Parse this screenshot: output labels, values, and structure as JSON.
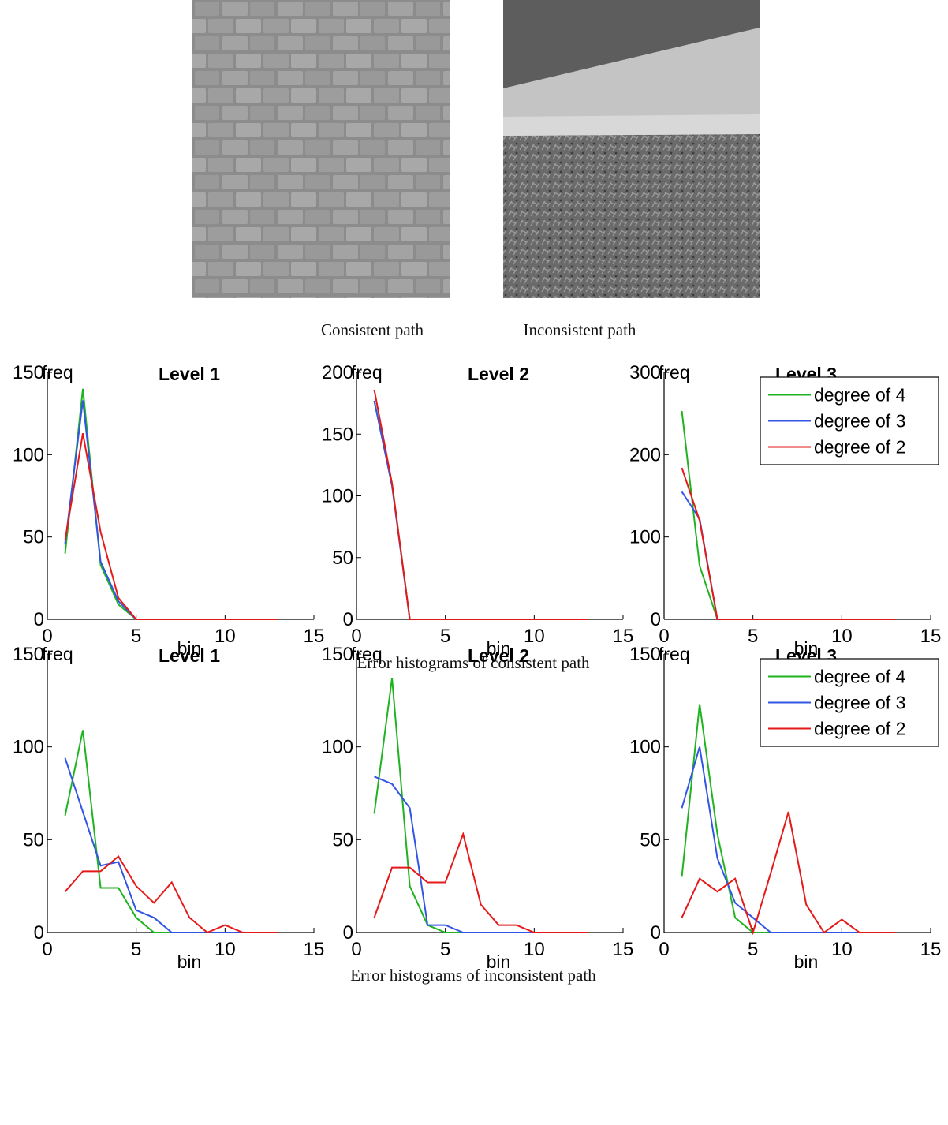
{
  "captions": [
    "Consistent path",
    "Inconsistent path",
    "Error histograms of consistent path",
    "Error histograms of inconsistent path"
  ],
  "chart_data": [
    {
      "type": "line",
      "title": "Level 1",
      "xlabel": "bin",
      "ylabel": "freq",
      "x": [
        1,
        2,
        3,
        4,
        5,
        6,
        7,
        8,
        9,
        10,
        11,
        12,
        13
      ],
      "xlim": [
        0,
        15
      ],
      "xticks": [
        0,
        5,
        10,
        15
      ],
      "ylim": [
        0,
        150
      ],
      "yticks": [
        0,
        50,
        100,
        150
      ],
      "series": [
        {
          "color": "#1fb31f",
          "values": [
            40,
            140,
            33,
            9,
            0,
            0,
            0,
            0,
            0,
            0,
            0,
            0,
            0
          ]
        },
        {
          "color": "#3355e6",
          "values": [
            46,
            133,
            35,
            11,
            0,
            0,
            0,
            0,
            0,
            0,
            0,
            0,
            0
          ]
        },
        {
          "color": "#e61919",
          "values": [
            48,
            113,
            53,
            13,
            0,
            0,
            0,
            0,
            0,
            0,
            0,
            0,
            0
          ]
        }
      ]
    },
    {
      "type": "line",
      "title": "Level 2",
      "xlabel": "bin",
      "ylabel": "freq",
      "x": [
        1,
        2,
        3,
        4,
        5,
        6,
        7,
        8,
        9,
        10,
        11,
        12,
        13
      ],
      "xlim": [
        0,
        15
      ],
      "xticks": [
        0,
        5,
        10,
        15
      ],
      "ylim": [
        0,
        200
      ],
      "yticks": [
        0,
        50,
        100,
        150,
        200
      ],
      "series": [
        {
          "color": "#1fb31f",
          "values": [
            177,
            110,
            0,
            0,
            0,
            0,
            0,
            0,
            0,
            0,
            0,
            0,
            0
          ]
        },
        {
          "color": "#3355e6",
          "values": [
            177,
            108,
            0,
            0,
            0,
            0,
            0,
            0,
            0,
            0,
            0,
            0,
            0
          ]
        },
        {
          "color": "#e61919",
          "values": [
            186,
            110,
            0,
            0,
            0,
            0,
            0,
            0,
            0,
            0,
            0,
            0,
            0
          ]
        }
      ]
    },
    {
      "type": "line",
      "title": "Level 3",
      "xlabel": "bin",
      "ylabel": "freq",
      "legend": "upper right",
      "x": [
        1,
        2,
        3,
        4,
        5,
        6,
        7,
        8,
        9,
        10,
        11,
        12,
        13
      ],
      "xlim": [
        0,
        15
      ],
      "xticks": [
        0,
        5,
        10,
        15
      ],
      "ylim": [
        0,
        300
      ],
      "yticks": [
        0,
        100,
        200,
        300
      ],
      "series": [
        {
          "name": "degree of 4",
          "color": "#1fb31f",
          "values": [
            253,
            65,
            0,
            0,
            0,
            0,
            0,
            0,
            0,
            0,
            0,
            0,
            0
          ]
        },
        {
          "name": "degree of 3",
          "color": "#3355e6",
          "values": [
            155,
            122,
            0,
            0,
            0,
            0,
            0,
            0,
            0,
            0,
            0,
            0,
            0
          ]
        },
        {
          "name": "degree of 2",
          "color": "#e61919",
          "values": [
            184,
            120,
            0,
            0,
            0,
            0,
            0,
            0,
            0,
            0,
            0,
            0,
            0
          ]
        }
      ]
    },
    {
      "type": "line",
      "title": "Level 1",
      "xlabel": "bin",
      "ylabel": "freq",
      "x": [
        1,
        2,
        3,
        4,
        5,
        6,
        7,
        8,
        9,
        10,
        11,
        12,
        13
      ],
      "xlim": [
        0,
        15
      ],
      "xticks": [
        0,
        5,
        10,
        15
      ],
      "ylim": [
        0,
        150
      ],
      "yticks": [
        0,
        50,
        100,
        150
      ],
      "series": [
        {
          "color": "#1fb31f",
          "values": [
            63,
            109,
            24,
            24,
            8,
            0,
            0,
            0,
            0,
            0,
            0,
            0,
            0
          ]
        },
        {
          "color": "#3355e6",
          "values": [
            94,
            65,
            36,
            38,
            12,
            8,
            0,
            0,
            0,
            0,
            0,
            0,
            0
          ]
        },
        {
          "color": "#e61919",
          "values": [
            22,
            33,
            33,
            41,
            25,
            16,
            27,
            8,
            0,
            4,
            0,
            0,
            0
          ]
        }
      ]
    },
    {
      "type": "line",
      "title": "Level 2",
      "xlabel": "bin",
      "ylabel": "freq",
      "x": [
        1,
        2,
        3,
        4,
        5,
        6,
        7,
        8,
        9,
        10,
        11,
        12,
        13
      ],
      "xlim": [
        0,
        15
      ],
      "xticks": [
        0,
        5,
        10,
        15
      ],
      "ylim": [
        0,
        150
      ],
      "yticks": [
        0,
        50,
        100,
        150
      ],
      "series": [
        {
          "color": "#1fb31f",
          "values": [
            64,
            137,
            25,
            4,
            0,
            0,
            0,
            0,
            0,
            0,
            0,
            0,
            0
          ]
        },
        {
          "color": "#3355e6",
          "values": [
            84,
            80,
            67,
            4,
            4,
            0,
            0,
            0,
            0,
            0,
            0,
            0,
            0
          ]
        },
        {
          "color": "#e61919",
          "values": [
            8,
            35,
            35,
            27,
            27,
            53,
            15,
            4,
            4,
            0,
            0,
            0,
            0
          ]
        }
      ]
    },
    {
      "type": "line",
      "title": "Level 3",
      "xlabel": "bin",
      "ylabel": "freq",
      "legend": "upper right",
      "x": [
        1,
        2,
        3,
        4,
        5,
        6,
        7,
        8,
        9,
        10,
        11,
        12,
        13
      ],
      "xlim": [
        0,
        15
      ],
      "xticks": [
        0,
        5,
        10,
        15
      ],
      "ylim": [
        0,
        150
      ],
      "yticks": [
        0,
        50,
        100,
        150
      ],
      "series": [
        {
          "name": "degree of 4",
          "color": "#1fb31f",
          "values": [
            30,
            123,
            53,
            8,
            0,
            0,
            0,
            0,
            0,
            0,
            0,
            0,
            0
          ]
        },
        {
          "name": "degree of 3",
          "color": "#3355e6",
          "values": [
            67,
            100,
            40,
            16,
            8,
            0,
            0,
            0,
            0,
            0,
            0,
            0,
            0
          ]
        },
        {
          "name": "degree of 2",
          "color": "#e61919",
          "values": [
            8,
            29,
            22,
            29,
            0,
            32,
            65,
            15,
            0,
            7,
            0,
            0,
            0
          ]
        }
      ]
    }
  ]
}
